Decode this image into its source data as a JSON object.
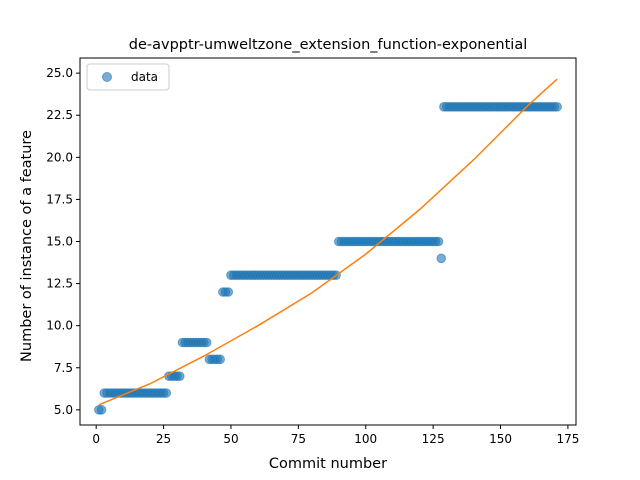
{
  "chart_data": {
    "type": "scatter",
    "title": "de-avpptr-umweltzone_extension_function-exponential",
    "xlabel": "Commit number",
    "ylabel": "Number of instance of a feature",
    "xlim": [
      -6,
      178
    ],
    "ylim": [
      4.1,
      25.9
    ],
    "xticks": [
      0,
      25,
      50,
      75,
      100,
      125,
      150,
      175
    ],
    "xtick_labels": [
      "0",
      "25",
      "50",
      "75",
      "100",
      "125",
      "150",
      "175"
    ],
    "yticks": [
      5.0,
      7.5,
      10.0,
      12.5,
      15.0,
      17.5,
      20.0,
      22.5,
      25.0
    ],
    "ytick_labels": [
      "5.0",
      "7.5",
      "10.0",
      "12.5",
      "15.0",
      "17.5",
      "20.0",
      "22.5",
      "25.0"
    ],
    "grid": false,
    "legend_position": "top-left",
    "series": [
      {
        "name": "data",
        "color": "#1f77b4",
        "segments": [
          {
            "x_start": 1,
            "x_end": 2,
            "y": 5
          },
          {
            "x_start": 3,
            "x_end": 26,
            "y": 6
          },
          {
            "x_start": 27,
            "x_end": 31,
            "y": 7
          },
          {
            "x_start": 32,
            "x_end": 41,
            "y": 9
          },
          {
            "x_start": 42,
            "x_end": 46,
            "y": 8
          },
          {
            "x_start": 47,
            "x_end": 49,
            "y": 12
          },
          {
            "x_start": 50,
            "x_end": 89,
            "y": 13
          },
          {
            "x_start": 90,
            "x_end": 127,
            "y": 15
          },
          {
            "x_start": 128,
            "x_end": 128,
            "y": 14
          },
          {
            "x_start": 129,
            "x_end": 171,
            "y": 23
          }
        ]
      },
      {
        "name": "",
        "type": "line",
        "color": "#ff7f0e",
        "x": [
          1,
          20,
          40,
          60,
          80,
          100,
          120,
          140,
          160,
          171
        ],
        "y": [
          5.3,
          6.55,
          8.2,
          10.0,
          11.95,
          14.25,
          16.9,
          19.85,
          23.05,
          24.65
        ]
      }
    ]
  }
}
